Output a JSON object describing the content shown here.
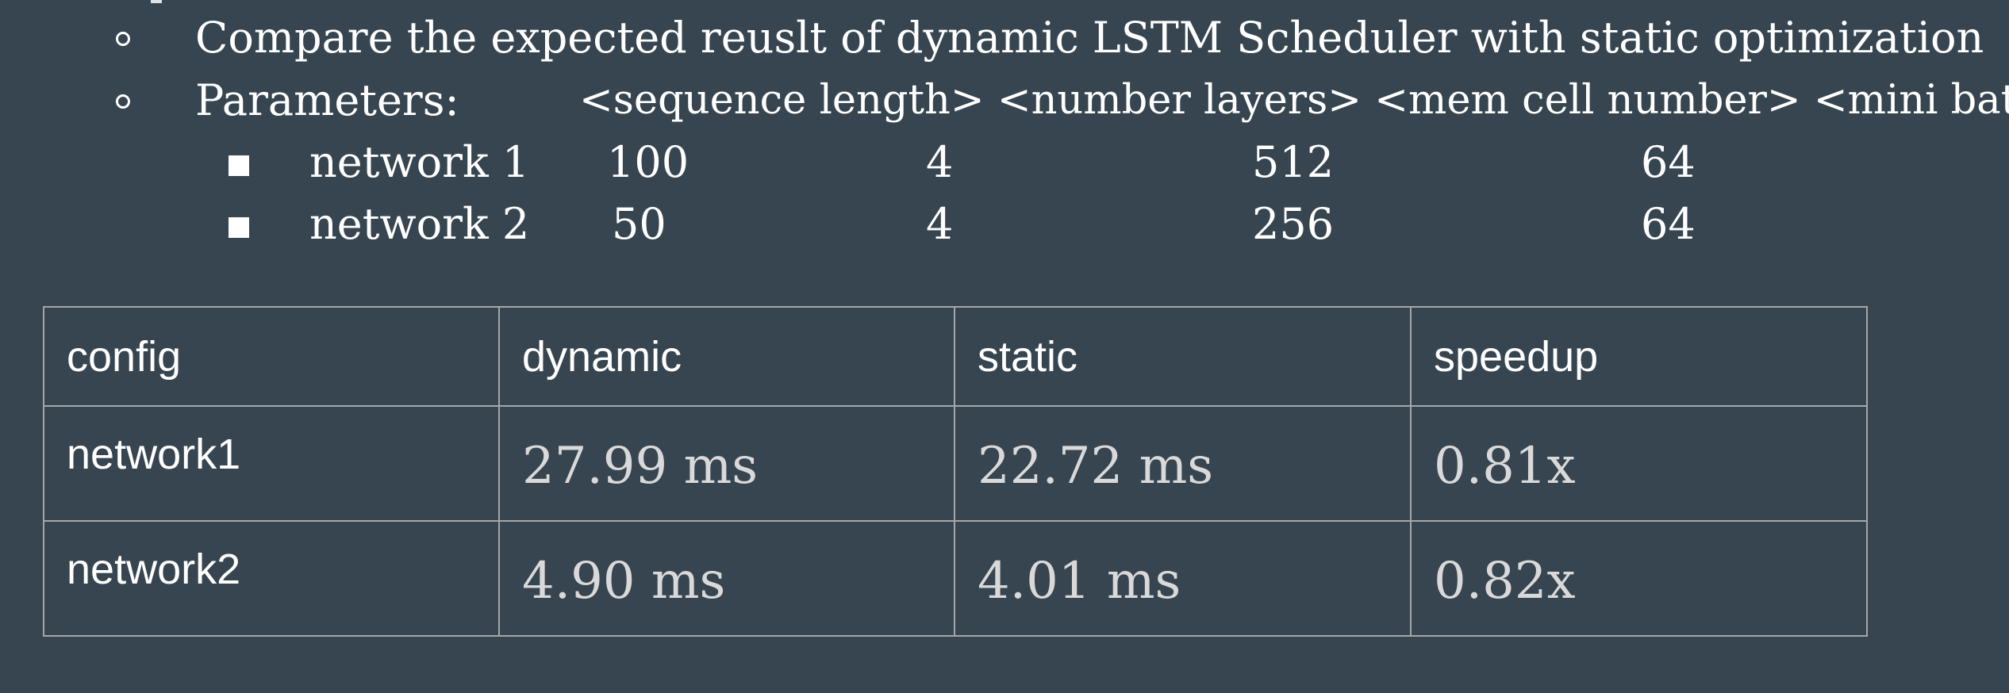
{
  "bullets": {
    "compare_text": "Compare the expected reuslt of dynamic LSTM Scheduler with static optimization",
    "parameters_label": "Parameters:",
    "parameters_header": "<sequence length> <number layers> <mem cell number> <mini batch>",
    "networks": [
      {
        "name": "network 1",
        "sequence_length": "100",
        "number_layers": "4",
        "mem_cell_number": "512",
        "mini_batch": "64"
      },
      {
        "name": "network 2",
        "sequence_length": "50",
        "number_layers": "4",
        "mem_cell_number": "256",
        "mini_batch": "64"
      }
    ]
  },
  "table": {
    "headers": [
      "config",
      "dynamic",
      "static",
      "speedup"
    ],
    "rows": [
      [
        "network1",
        "27.99 ms",
        "22.72 ms",
        "0.81x"
      ],
      [
        "network2",
        "4.90 ms",
        "4.01 ms",
        "0.82x"
      ]
    ]
  },
  "colors": {
    "background": "#36454f",
    "text": "#ffffff",
    "value_text": "#d9d9d9",
    "table_border": "#a6a6a6"
  }
}
